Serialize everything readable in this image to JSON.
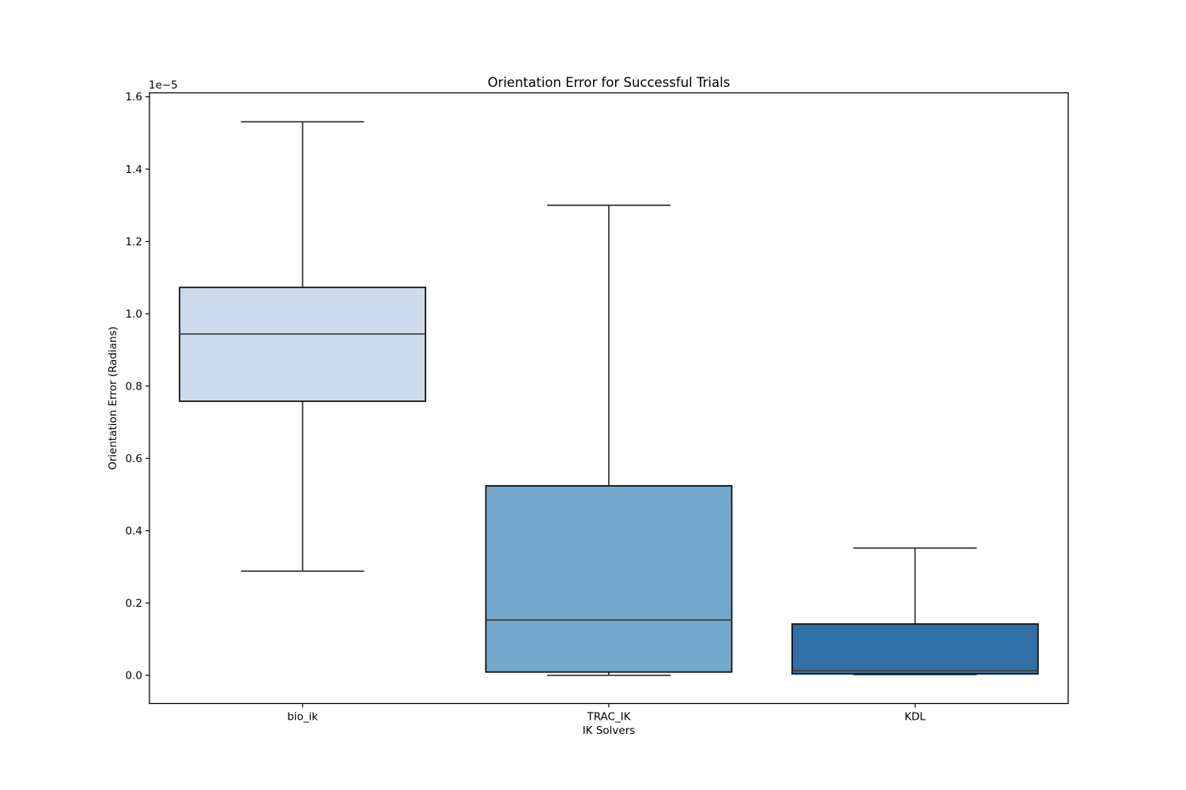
{
  "chart_data": {
    "type": "boxplot",
    "title": "Orientation Error for Successful Trials",
    "xlabel": "IK Solvers",
    "ylabel": "Orientation Error (Radians)",
    "y_offset_label": "1e−5",
    "y_unit": "radians, values scaled by 1e-5",
    "categories": [
      "bio_ik",
      "TRAC_IK",
      "KDL"
    ],
    "ytick_labels": [
      "0.0",
      "0.2",
      "0.4",
      "0.6",
      "0.8",
      "1.0",
      "1.2",
      "1.4",
      "1.6"
    ],
    "ylim": [
      -0.078,
      1.611
    ],
    "grid": false,
    "legend": false,
    "series": [
      {
        "name": "bio_ik",
        "whislo": 0.288,
        "q1": 0.758,
        "med": 0.944,
        "q3": 1.073,
        "whishi": 1.531,
        "fill_color": "#ccdcec"
      },
      {
        "name": "TRAC_IK",
        "whislo": 0.0,
        "q1": 0.009,
        "med": 0.153,
        "q3": 0.524,
        "whishi": 1.3,
        "fill_color": "#74a8cc"
      },
      {
        "name": "KDL",
        "whislo": 0.002,
        "q1": 0.004,
        "med": 0.013,
        "q3": 0.142,
        "whishi": 0.352,
        "fill_color": "#3070a6"
      }
    ],
    "colors": {
      "line": "#3d3d3d",
      "box_edge": "#111111",
      "spine": "#000000",
      "tick": "#000000",
      "text": "#000000",
      "background": "#ffffff"
    }
  }
}
